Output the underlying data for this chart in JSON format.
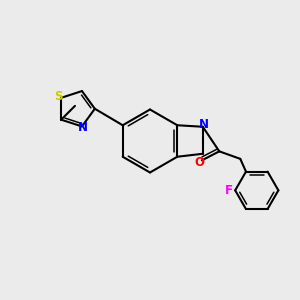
{
  "background_color": "#ebebeb",
  "bond_color": "#000000",
  "atom_colors": {
    "N": "#0000ff",
    "O": "#ff0000",
    "S": "#cccc00",
    "F": "#ff00ff",
    "C": "#000000"
  },
  "lw": 1.5,
  "lw2": 1.1,
  "font_size": 8.5
}
